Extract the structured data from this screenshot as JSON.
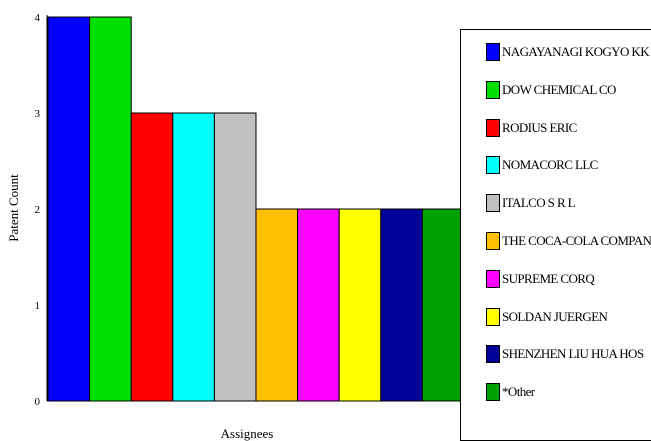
{
  "chart_data": {
    "type": "bar",
    "xlabel": "Assignees",
    "ylabel": "Patent Count",
    "ylim": [
      0,
      4
    ],
    "yticks": [
      "0",
      "1",
      "2",
      "3",
      "4"
    ],
    "grid": false,
    "legend_position": "right",
    "series": [
      {
        "name": "NAGAYANAGI KOGYO KK",
        "value": 4,
        "color": "#0000ff"
      },
      {
        "name": "DOW CHEMICAL CO",
        "value": 4,
        "color": "#00e000"
      },
      {
        "name": "RODIUS ERIC",
        "value": 3,
        "color": "#ff0000"
      },
      {
        "name": "NOMACORC LLC",
        "value": 3,
        "color": "#00ffff"
      },
      {
        "name": "ITALCO S R L",
        "value": 3,
        "color": "#c0c0c0"
      },
      {
        "name": "THE COCA-COLA COMPANY",
        "value": 2,
        "color": "#ffc000"
      },
      {
        "name": "SUPREME CORQ",
        "value": 2,
        "color": "#ff00ff"
      },
      {
        "name": "SOLDAN JUERGEN",
        "value": 2,
        "color": "#ffff00"
      },
      {
        "name": "SHENZHEN LIU HUA HOS",
        "value": 2,
        "color": "#000099"
      },
      {
        "name": "*Other",
        "value": 2,
        "color": "#00a000"
      }
    ]
  }
}
